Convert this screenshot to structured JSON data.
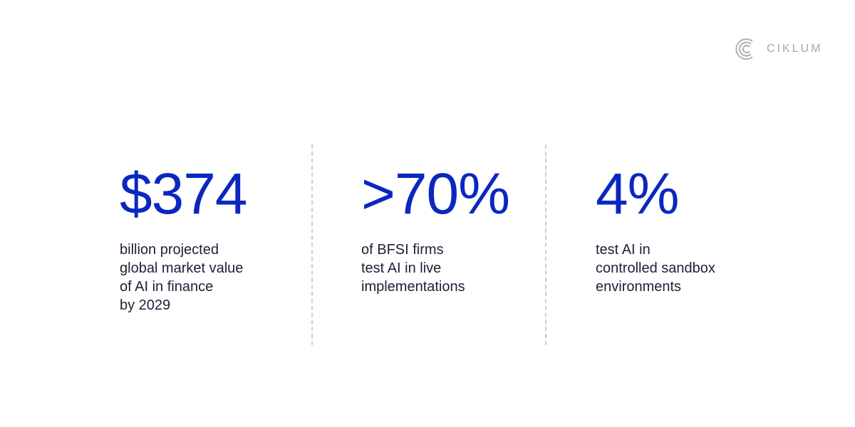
{
  "brand": {
    "name": "CIKLUM",
    "logo_icon": "ciklum-c-logo",
    "color": "#a8a8a8"
  },
  "accent_color": "#0a28bf",
  "stats": [
    {
      "value": "$374",
      "description": "billion projected\nglobal market value\nof AI in finance\nby 2029"
    },
    {
      "value": ">70%",
      "description": "of BFSI firms\ntest AI in live\nimplementations"
    },
    {
      "value": "4%",
      "description": "test AI in\ncontrolled sandbox\nenvironments"
    }
  ]
}
